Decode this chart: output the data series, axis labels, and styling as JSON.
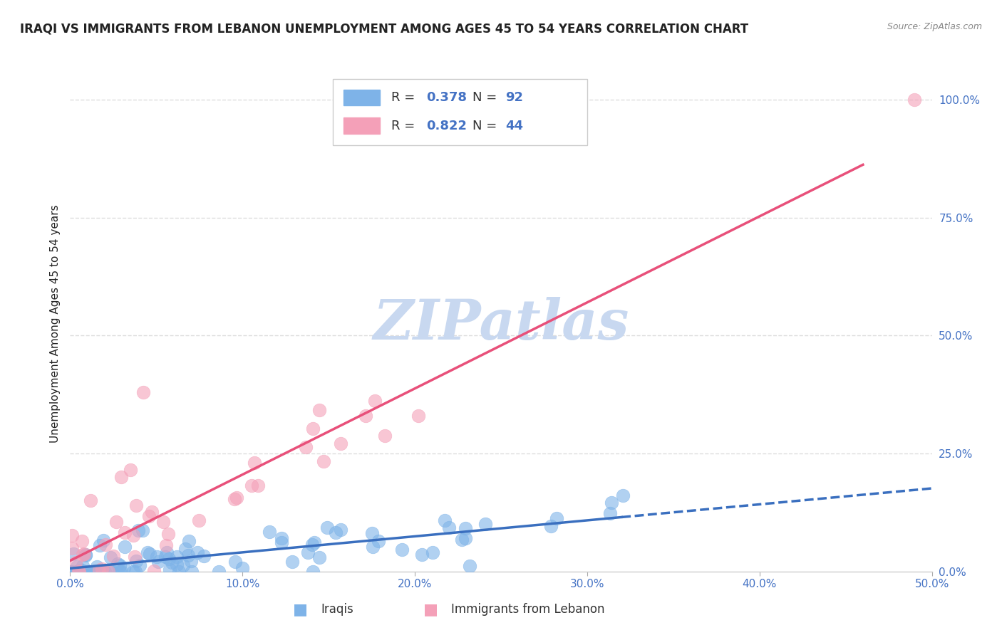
{
  "title": "IRAQI VS IMMIGRANTS FROM LEBANON UNEMPLOYMENT AMONG AGES 45 TO 54 YEARS CORRELATION CHART",
  "source": "Source: ZipAtlas.com",
  "ylabel": "Unemployment Among Ages 45 to 54 years",
  "xlim": [
    0,
    0.5
  ],
  "ylim": [
    0,
    1.05
  ],
  "iraqis_R": 0.378,
  "iraqis_N": 92,
  "lebanon_R": 0.822,
  "lebanon_N": 44,
  "iraqis_color": "#7EB3E8",
  "lebanon_color": "#F4A0B8",
  "iraqis_line_color": "#3A6FBF",
  "lebanon_line_color": "#E8507A",
  "watermark": "ZIPatlas",
  "watermark_color": "#C8D8F0",
  "background_color": "#FFFFFF",
  "title_color": "#222222",
  "source_color": "#888888",
  "axis_label_color": "#222222",
  "tick_label_color": "#4472C4",
  "grid_color": "#DDDDDD",
  "legend_color": "#4472C4"
}
